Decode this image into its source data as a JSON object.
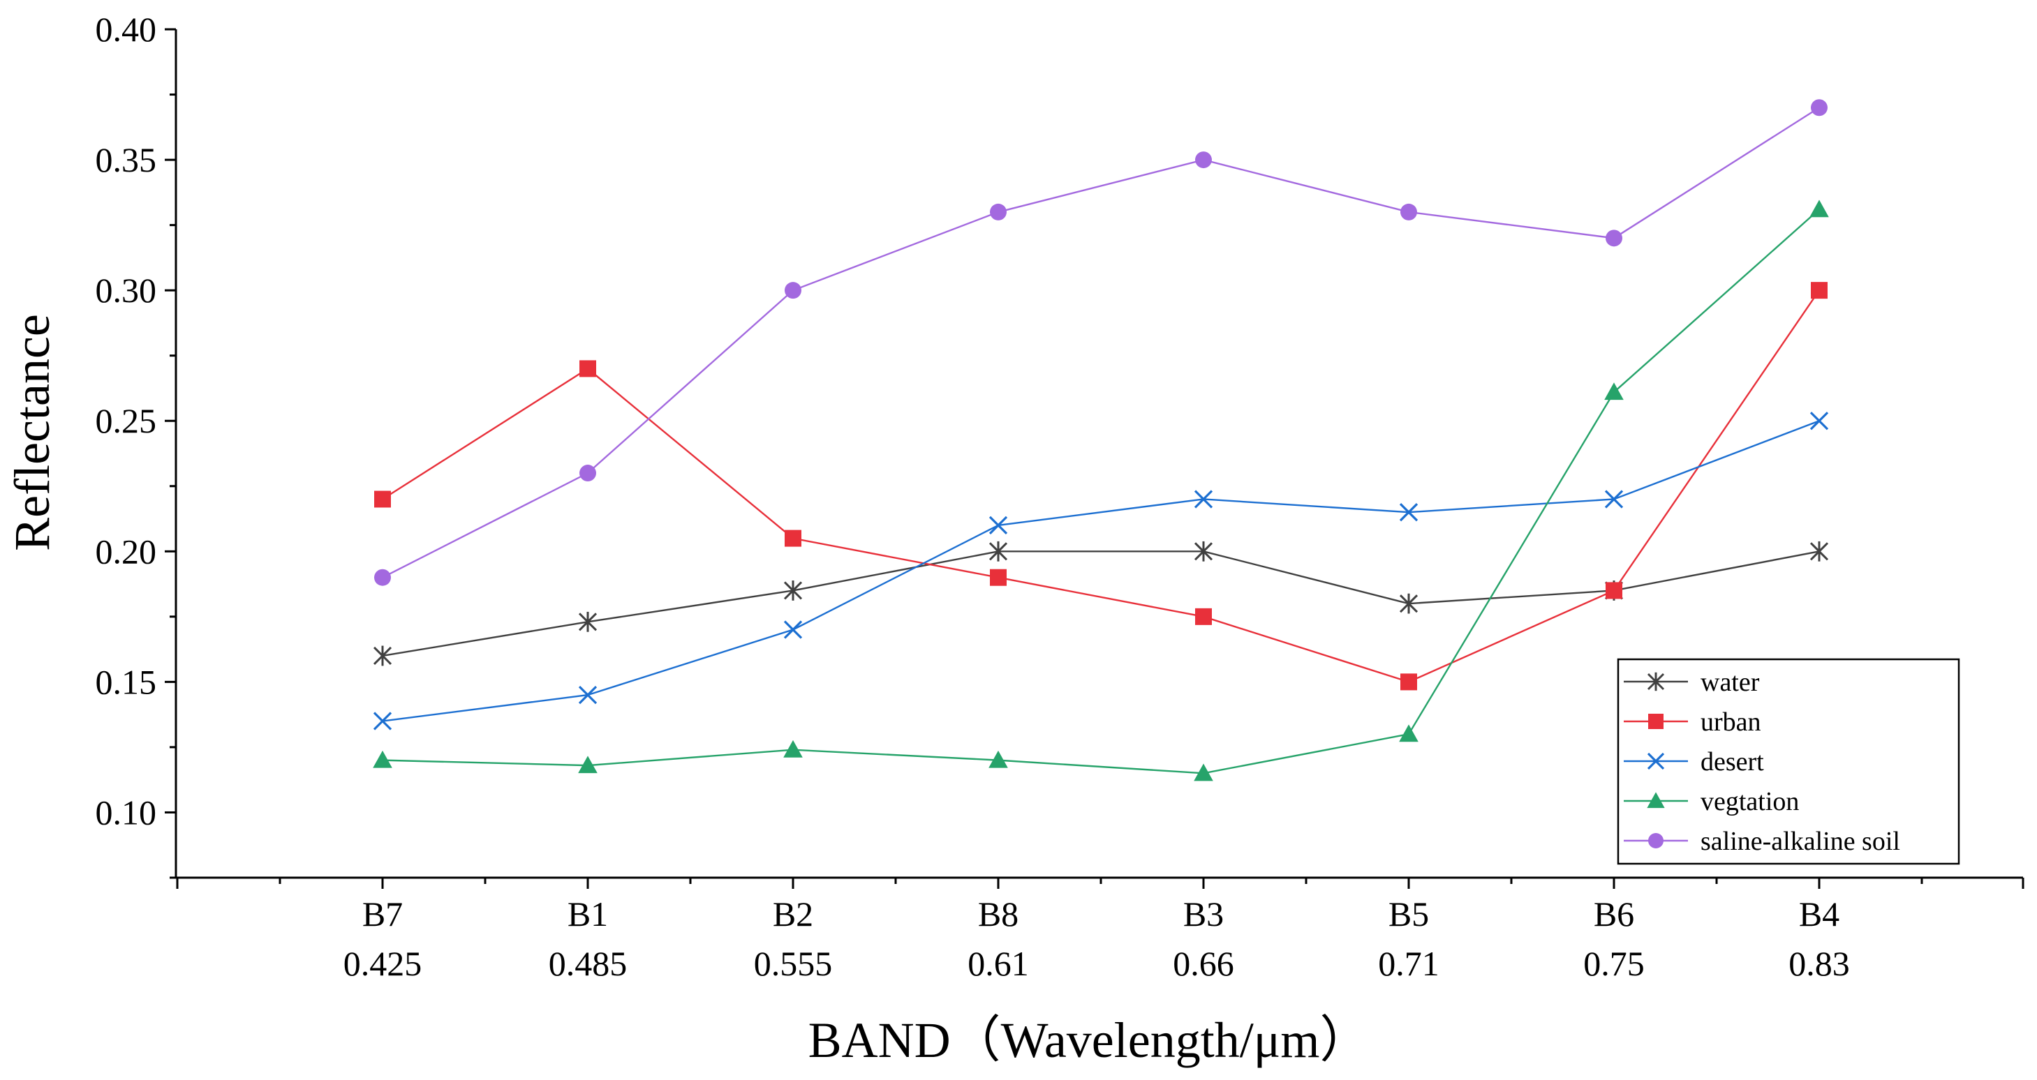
{
  "chart_data": {
    "type": "line",
    "title": "",
    "xlabel": "BAND（Wavelength/μm）",
    "ylabel": "Reflectance",
    "ylim": [
      0.075,
      0.4
    ],
    "yticks": [
      0.1,
      0.15,
      0.2,
      0.25,
      0.3,
      0.35,
      0.4
    ],
    "ytick_labels": [
      "0.10",
      "0.15",
      "0.20",
      "0.25",
      "0.30",
      "0.35",
      "0.40"
    ],
    "categories": [
      {
        "band": "B7",
        "wavelength": "0.425"
      },
      {
        "band": "B1",
        "wavelength": "0.485"
      },
      {
        "band": "B2",
        "wavelength": "0.555"
      },
      {
        "band": "B8",
        "wavelength": "0.61"
      },
      {
        "band": "B3",
        "wavelength": "0.66"
      },
      {
        "band": "B5",
        "wavelength": "0.71"
      },
      {
        "band": "B6",
        "wavelength": "0.75"
      },
      {
        "band": "B4",
        "wavelength": "0.83"
      }
    ],
    "legend_position": "bottom-right",
    "grid": false,
    "series": [
      {
        "name": "water",
        "color": "#404040",
        "marker": "asterisk",
        "values": [
          0.16,
          0.173,
          0.185,
          0.2,
          0.2,
          0.18,
          0.185,
          0.2
        ]
      },
      {
        "name": "urban",
        "color": "#e8303a",
        "marker": "square",
        "values": [
          0.22,
          0.27,
          0.205,
          0.19,
          0.175,
          0.15,
          0.185,
          0.3
        ]
      },
      {
        "name": "desert",
        "color": "#1c6fd1",
        "marker": "x",
        "values": [
          0.135,
          0.145,
          0.17,
          0.21,
          0.22,
          0.215,
          0.22,
          0.25
        ]
      },
      {
        "name": "vegtation",
        "color": "#26a36a",
        "marker": "triangle",
        "values": [
          0.12,
          0.118,
          0.124,
          0.12,
          0.115,
          0.13,
          0.261,
          0.331
        ]
      },
      {
        "name": "saline-alkaline soil",
        "color": "#a369df",
        "marker": "circle",
        "values": [
          0.19,
          0.23,
          0.3,
          0.33,
          0.35,
          0.33,
          0.32,
          0.37
        ]
      }
    ]
  }
}
